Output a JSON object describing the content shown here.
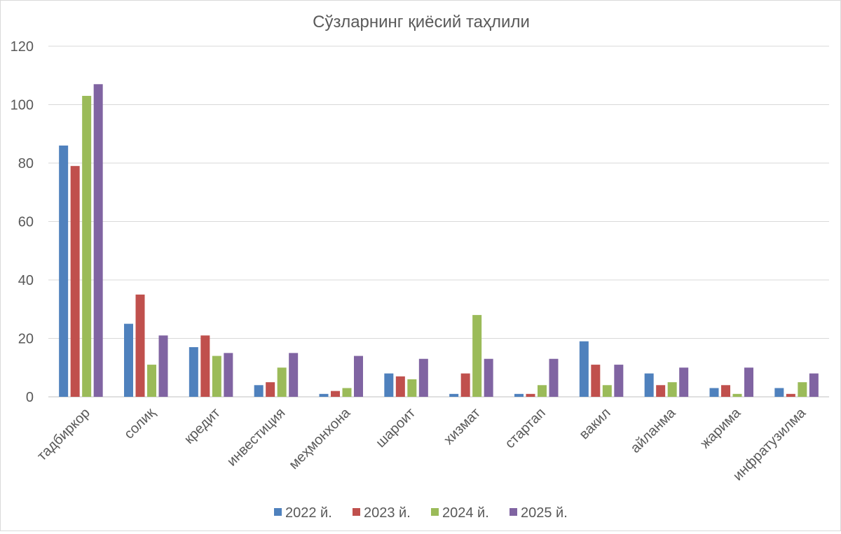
{
  "chart_data": {
    "type": "bar",
    "title": "Сўзларнинг қиёсий таҳлили",
    "xlabel": "",
    "ylabel": "",
    "ylim": [
      0,
      120
    ],
    "yticks": [
      0,
      20,
      40,
      60,
      80,
      100,
      120
    ],
    "grid": true,
    "legend_position": "bottom",
    "categories": [
      "тадбиркор",
      "солиқ",
      "кредит",
      "инвестиция",
      "меҳмонхона",
      "шароит",
      "хизмат",
      "стартап",
      "вакил",
      "айланма",
      "жарима",
      "инфратузилма"
    ],
    "series": [
      {
        "name": "2022 й.",
        "color": "#4f81bd",
        "values": [
          86,
          25,
          17,
          4,
          1,
          8,
          1,
          1,
          19,
          8,
          3,
          3
        ]
      },
      {
        "name": "2023 й.",
        "color": "#c0504d",
        "values": [
          79,
          35,
          21,
          5,
          2,
          7,
          8,
          1,
          11,
          4,
          4,
          1
        ]
      },
      {
        "name": "2024 й.",
        "color": "#9bbb59",
        "values": [
          103,
          11,
          14,
          10,
          3,
          6,
          28,
          4,
          4,
          5,
          1,
          5
        ]
      },
      {
        "name": "2025 й.",
        "color": "#8064a2",
        "values": [
          107,
          21,
          15,
          15,
          14,
          13,
          13,
          13,
          11,
          10,
          10,
          8
        ]
      }
    ]
  }
}
